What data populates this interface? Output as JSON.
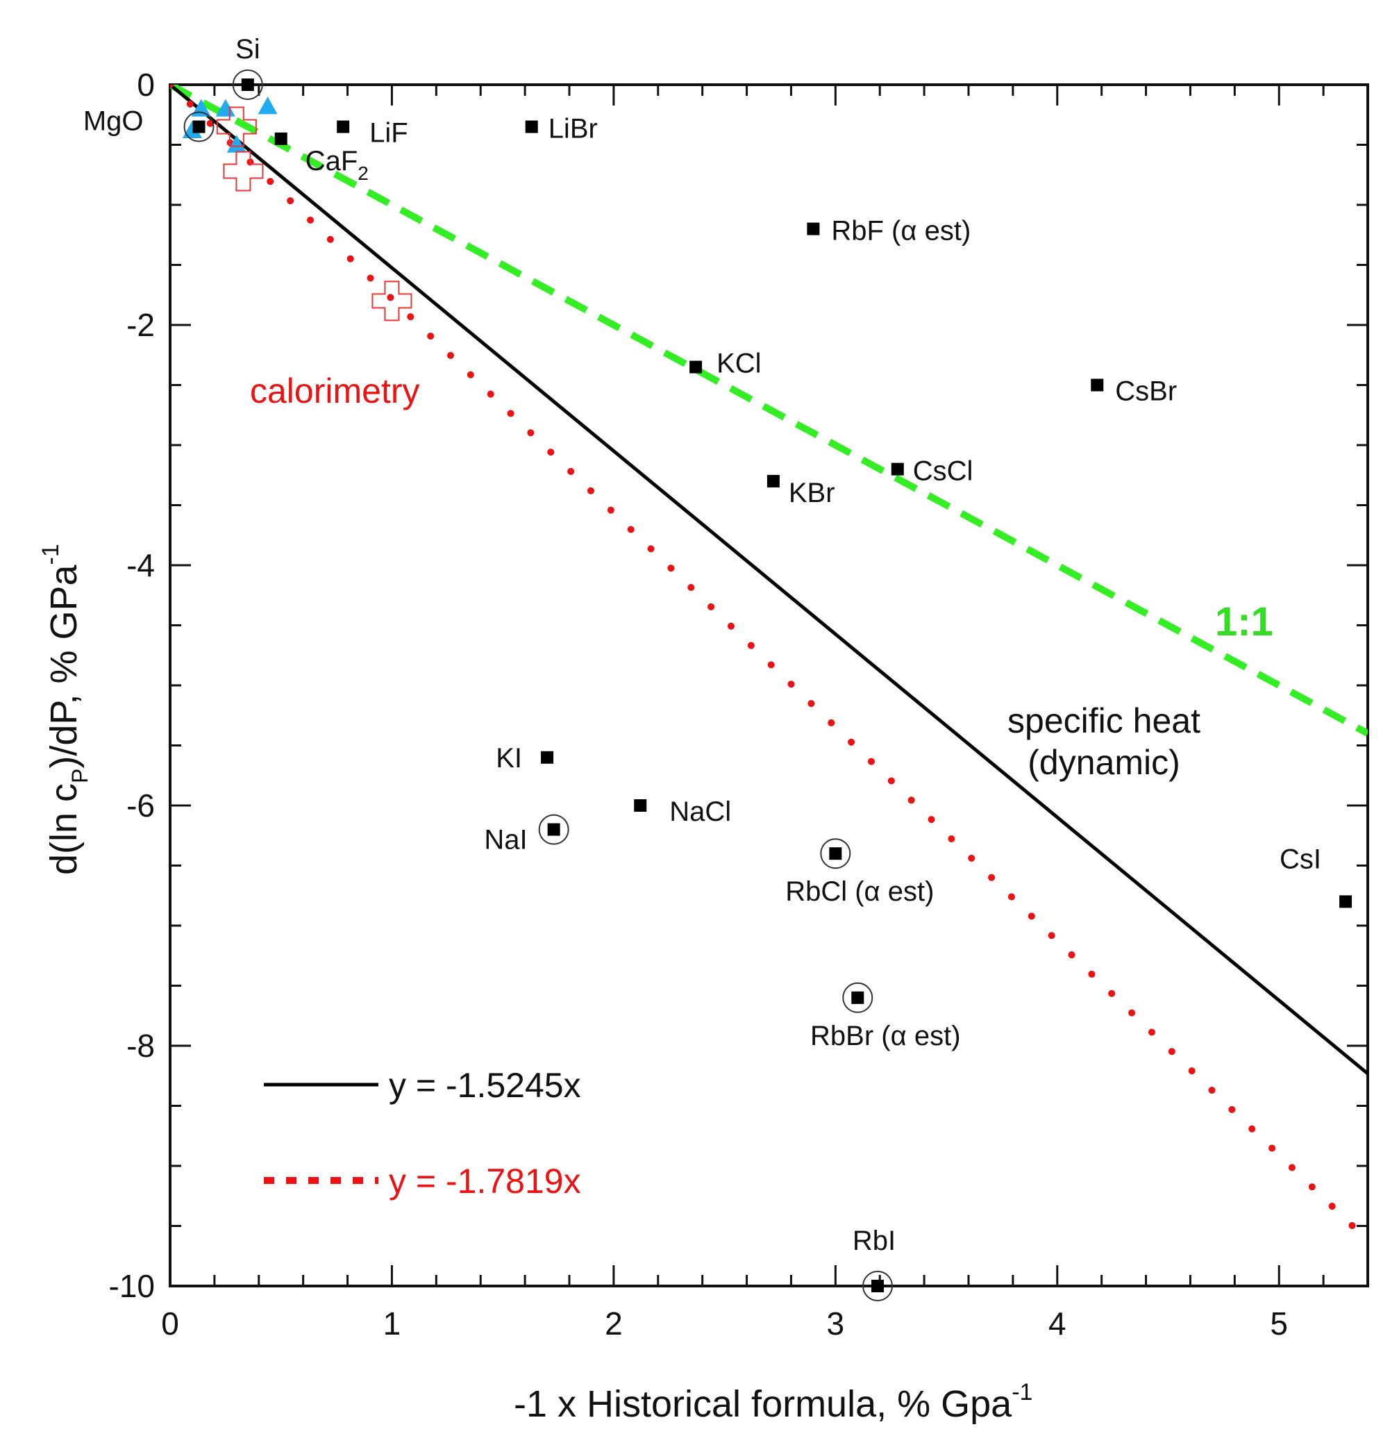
{
  "chart_data": {
    "type": "scatter",
    "xlabel": "-1 x Historical formula, % Gpa",
    "xlabel_sup": "-1",
    "ylabel_parts": [
      "d(ln c",
      "P",
      ")/dP,  % GPa",
      "-1"
    ],
    "xlim": [
      0,
      5.4
    ],
    "ylim": [
      -10,
      0
    ],
    "xticks": [
      0,
      1,
      2,
      3,
      4,
      5
    ],
    "xtick_labels": [
      "0",
      "1",
      "2",
      "3",
      "4",
      "5"
    ],
    "yticks": [
      0,
      -2,
      -4,
      -6,
      -8,
      -10
    ],
    "ytick_labels": [
      "0",
      "-2",
      "-4",
      "-6",
      "-8",
      "-10"
    ],
    "points": [
      {
        "id": "si",
        "label": "Si",
        "x": 0.35,
        "y": 0.0,
        "circled": true
      },
      {
        "id": "mgo",
        "label": "MgO",
        "x": 0.13,
        "y": -0.35,
        "circled": true
      },
      {
        "id": "caf2",
        "label": "CaF",
        "label_sub": "2",
        "x": 0.5,
        "y": -0.45,
        "circled": false
      },
      {
        "id": "lif",
        "label": "LiF",
        "x": 0.78,
        "y": -0.35,
        "circled": false
      },
      {
        "id": "libr",
        "label": "LiBr",
        "x": 1.63,
        "y": -0.35,
        "circled": false
      },
      {
        "id": "rbf",
        "label": "RbF (",
        "label_greek": "α",
        "label_tail": " est)",
        "x": 2.9,
        "y": -1.2,
        "circled": false
      },
      {
        "id": "kcl",
        "label": "KCl",
        "x": 2.37,
        "y": -2.35,
        "circled": false
      },
      {
        "id": "csbr",
        "label": "CsBr",
        "x": 4.18,
        "y": -2.5,
        "circled": false
      },
      {
        "id": "cscl",
        "label": "CsCl",
        "x": 3.28,
        "y": -3.2,
        "circled": false
      },
      {
        "id": "kbr",
        "label": "KBr",
        "x": 2.72,
        "y": -3.3,
        "circled": false
      },
      {
        "id": "ki",
        "label": "KI",
        "x": 1.7,
        "y": -5.6,
        "circled": false
      },
      {
        "id": "nacl",
        "label": "NaCl",
        "x": 2.12,
        "y": -6.0,
        "circled": false
      },
      {
        "id": "nai",
        "label": "NaI",
        "x": 1.73,
        "y": -6.2,
        "circled": true
      },
      {
        "id": "rbcl",
        "label": "RbCl (",
        "label_greek": "α",
        "label_tail": " est)",
        "x": 3.0,
        "y": -6.4,
        "circled": true
      },
      {
        "id": "csi",
        "label": "CsI",
        "x": 5.3,
        "y": -6.8,
        "circled": false
      },
      {
        "id": "rbbr",
        "label": "RbBr (",
        "label_greek": "α",
        "label_tail": " est)",
        "x": 3.1,
        "y": -7.6,
        "circled": true
      },
      {
        "id": "rbi",
        "label": "RbI",
        "x": 3.19,
        "y": -10.0,
        "circled": true
      }
    ],
    "triangles": [
      {
        "x": 0.1,
        "y": -0.38
      },
      {
        "x": 0.14,
        "y": -0.2
      },
      {
        "x": 0.25,
        "y": -0.2
      },
      {
        "x": 0.3,
        "y": -0.5
      },
      {
        "x": 0.44,
        "y": -0.18
      }
    ],
    "calorimetry_points": [
      {
        "x": 0.3,
        "y": -0.35
      },
      {
        "x": 0.33,
        "y": -0.72
      },
      {
        "x": 1.0,
        "y": -1.8
      }
    ],
    "series": [
      {
        "name": "specific heat (dynamic)",
        "equation": "y = -1.5245x",
        "slope": -1.5245,
        "style": "solid",
        "color": "#000000"
      },
      {
        "name": "calorimetry",
        "equation": "y = -1.7819x",
        "slope": -1.7819,
        "style": "dotted",
        "color": "#ee1111"
      },
      {
        "name": "1:1",
        "equation": "y = -x",
        "slope": -1.0,
        "style": "dashed",
        "color": "#33ee22"
      }
    ],
    "annotations": {
      "calorimetry": "calorimetry",
      "specific_heat_line1": "specific heat",
      "specific_heat_line2": "(dynamic)",
      "one_to_one": "1:1"
    },
    "legend": {
      "placement": "bottom-left",
      "entries": [
        "y = -1.5245x",
        "y = -1.7819x"
      ]
    }
  },
  "colors": {
    "axis": "#111111",
    "solid_line": "#000000",
    "dotted_line": "#ee1111",
    "dashed_line": "#33ee22",
    "triangle": "#22aaee",
    "cross": "#ee3333",
    "marker": "#000000"
  }
}
